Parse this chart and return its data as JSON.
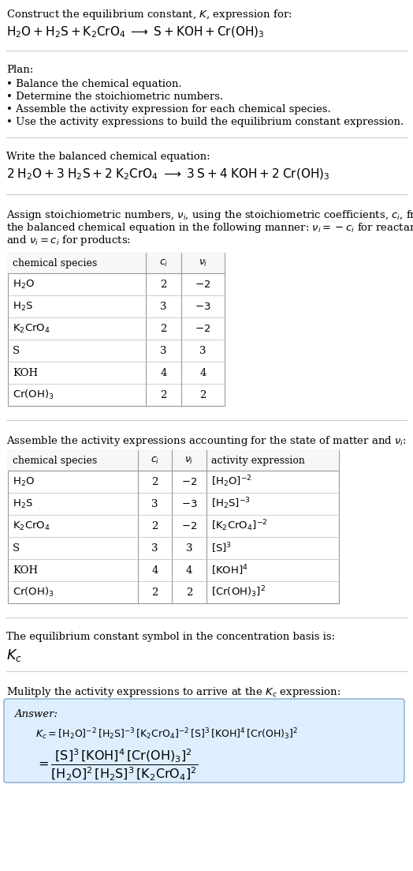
{
  "bg_color": "#ffffff",
  "title_line1": "Construct the equilibrium constant, $K$, expression for:",
  "title_line2": "$\\mathrm{H_2O + H_2S + K_2CrO_4 \\;\\longrightarrow\\; S + KOH + Cr(OH)_3}$",
  "plan_header": "Plan:",
  "plan_items": [
    "• Balance the chemical equation.",
    "• Determine the stoichiometric numbers.",
    "• Assemble the activity expression for each chemical species.",
    "• Use the activity expressions to build the equilibrium constant expression."
  ],
  "balanced_header": "Write the balanced chemical equation:",
  "balanced_eq": "$\\mathrm{2\\;H_2O + 3\\;H_2S + 2\\;K_2CrO_4 \\;\\longrightarrow\\; 3\\;S + 4\\;KOH + 2\\;Cr(OH)_3}$",
  "assign_text": [
    "Assign stoichiometric numbers, $\\nu_i$, using the stoichiometric coefficients, $c_i$, from",
    "the balanced chemical equation in the following manner: $\\nu_i = -c_i$ for reactants",
    "and $\\nu_i = c_i$ for products:"
  ],
  "table1_headers": [
    "chemical species",
    "$c_i$",
    "$\\nu_i$"
  ],
  "table1_rows": [
    [
      "$\\mathrm{H_2O}$",
      "2",
      "$-2$"
    ],
    [
      "$\\mathrm{H_2S}$",
      "3",
      "$-3$"
    ],
    [
      "$\\mathrm{K_2CrO_4}$",
      "2",
      "$-2$"
    ],
    [
      "S",
      "3",
      "3"
    ],
    [
      "KOH",
      "4",
      "4"
    ],
    [
      "$\\mathrm{Cr(OH)_3}$",
      "2",
      "2"
    ]
  ],
  "assemble_header": "Assemble the activity expressions accounting for the state of matter and $\\nu_i$:",
  "table2_headers": [
    "chemical species",
    "$c_i$",
    "$\\nu_i$",
    "activity expression"
  ],
  "table2_rows": [
    [
      "$\\mathrm{H_2O}$",
      "2",
      "$-2$",
      "$[\\mathrm{H_2O}]^{-2}$"
    ],
    [
      "$\\mathrm{H_2S}$",
      "3",
      "$-3$",
      "$[\\mathrm{H_2S}]^{-3}$"
    ],
    [
      "$\\mathrm{K_2CrO_4}$",
      "2",
      "$-2$",
      "$[\\mathrm{K_2CrO_4}]^{-2}$"
    ],
    [
      "S",
      "3",
      "3",
      "$[\\mathrm{S}]^{3}$"
    ],
    [
      "KOH",
      "4",
      "4",
      "$[\\mathrm{KOH}]^{4}$"
    ],
    [
      "$\\mathrm{Cr(OH)_3}$",
      "2",
      "2",
      "$[\\mathrm{Cr(OH)_3}]^{2}$"
    ]
  ],
  "eq_symbol_header": "The equilibrium constant symbol in the concentration basis is:",
  "eq_symbol": "$K_c$",
  "multiply_header": "Mulitply the activity expressions to arrive at the $K_c$ expression:",
  "answer_label": "Answer:",
  "answer_line1": "$K_c = [\\mathrm{H_2O}]^{-2}\\,[\\mathrm{H_2S}]^{-3}\\,[\\mathrm{K_2CrO_4}]^{-2}\\,[\\mathrm{S}]^{3}\\,[\\mathrm{KOH}]^{4}\\,[\\mathrm{Cr(OH)_3}]^{2}$",
  "answer_eq_lhs": "$= \\dfrac{[\\mathrm{S}]^{3}\\,[\\mathrm{KOH}]^{4}\\,[\\mathrm{Cr(OH)_3}]^{2}}{[\\mathrm{H_2O}]^{2}\\,[\\mathrm{H_2S}]^{3}\\,[\\mathrm{K_2CrO_4}]^{2}}$",
  "answer_box_color": "#ddeeff",
  "answer_box_border": "#88aacc",
  "text_color": "#000000",
  "line_color": "#cccccc",
  "table_border_color": "#999999",
  "table_row_color": "#dddddd",
  "font_size": 9.5
}
